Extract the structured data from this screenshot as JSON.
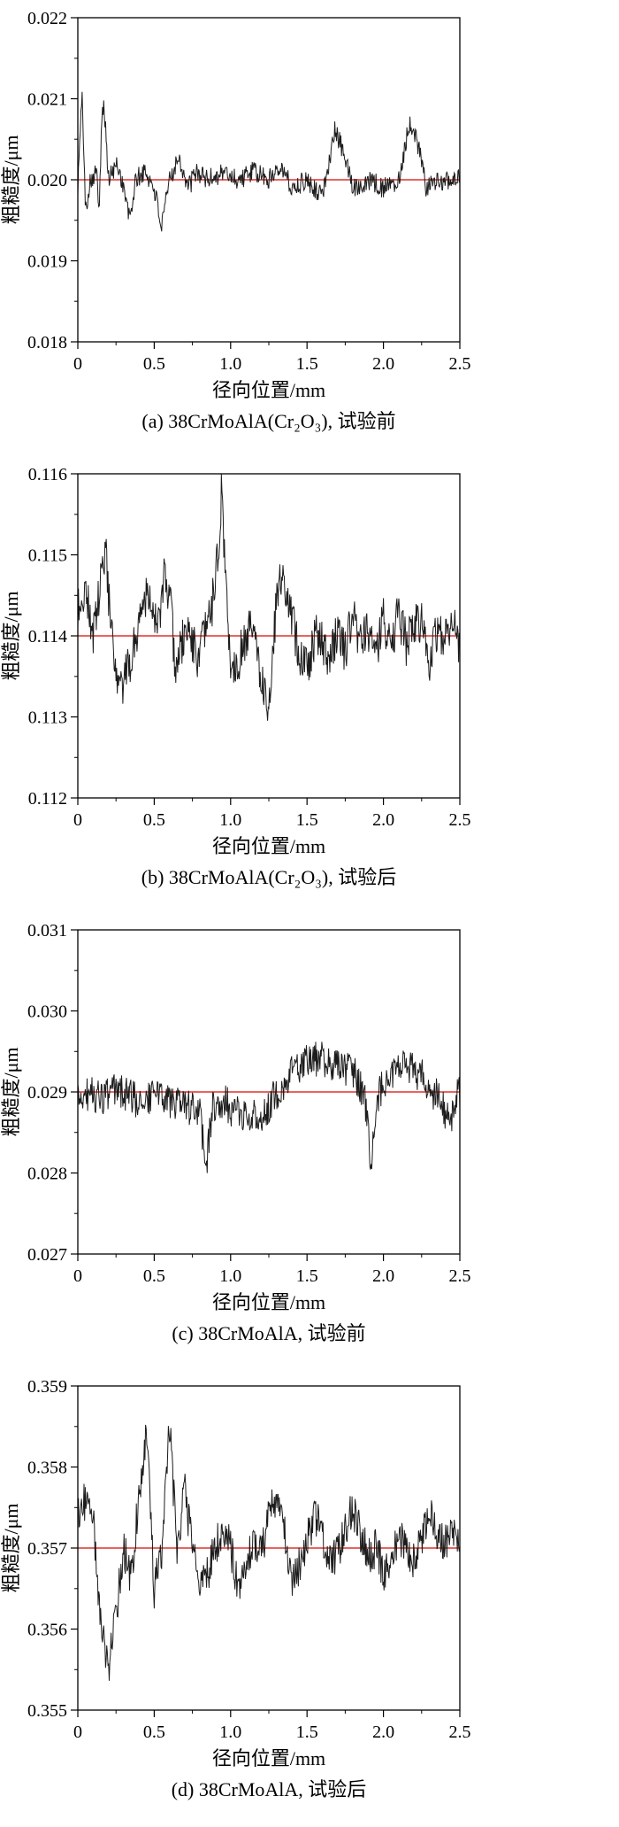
{
  "page_description": "Four stacked surface roughness profile plots with red mean lines",
  "axis_common": {
    "xlabel": "径向位置/mm",
    "ylabel": "粗糙度/μm"
  },
  "chart_data": [
    {
      "id": "a",
      "type": "line",
      "title": "(a) 38CrMoAlA(Cr₂O₃), 试验前",
      "xlabel": "径向位置/mm",
      "ylabel": "粗糙度/μm",
      "xlim": [
        0,
        2.5
      ],
      "ylim": [
        0.018,
        0.022
      ],
      "x_tick_values": [
        0,
        0.5,
        1.0,
        1.5,
        2.0,
        2.5
      ],
      "x_tick_labels": [
        "0",
        "0.5",
        "1.0",
        "1.5",
        "2.0",
        "2.5"
      ],
      "y_tick_values": [
        0.018,
        0.019,
        0.02,
        0.021,
        0.022
      ],
      "y_tick_labels": [
        "0.018",
        "0.019",
        "0.020",
        "0.021",
        "0.022"
      ],
      "grid": false,
      "legend": null,
      "mean_line": {
        "value": 0.02,
        "color": "#e0312b"
      },
      "series": [
        {
          "name": "roughness-profile",
          "color": "#1c1c1c",
          "anchors": [
            [
              0.0,
              0.0199
            ],
            [
              0.02,
              0.0208
            ],
            [
              0.03,
              0.021
            ],
            [
              0.05,
              0.0196
            ],
            [
              0.08,
              0.02
            ],
            [
              0.12,
              0.0201
            ],
            [
              0.14,
              0.0197
            ],
            [
              0.16,
              0.021
            ],
            [
              0.18,
              0.0207
            ],
            [
              0.2,
              0.02
            ],
            [
              0.26,
              0.0202
            ],
            [
              0.3,
              0.0199
            ],
            [
              0.34,
              0.0195
            ],
            [
              0.38,
              0.02
            ],
            [
              0.44,
              0.0201
            ],
            [
              0.5,
              0.0199
            ],
            [
              0.55,
              0.0194
            ],
            [
              0.6,
              0.02
            ],
            [
              0.66,
              0.0203
            ],
            [
              0.72,
              0.0199
            ],
            [
              0.78,
              0.0201
            ],
            [
              0.85,
              0.02
            ],
            [
              0.95,
              0.0201
            ],
            [
              1.05,
              0.02
            ],
            [
              1.15,
              0.0201
            ],
            [
              1.25,
              0.02
            ],
            [
              1.32,
              0.0202
            ],
            [
              1.4,
              0.0199
            ],
            [
              1.5,
              0.02
            ],
            [
              1.6,
              0.0198
            ],
            [
              1.68,
              0.0206
            ],
            [
              1.73,
              0.0204
            ],
            [
              1.8,
              0.0199
            ],
            [
              1.9,
              0.02
            ],
            [
              2.0,
              0.0199
            ],
            [
              2.1,
              0.02
            ],
            [
              2.17,
              0.0207
            ],
            [
              2.22,
              0.0205
            ],
            [
              2.28,
              0.0199
            ],
            [
              2.38,
              0.02
            ],
            [
              2.5,
              0.02
            ]
          ],
          "noise_amplitude": 0.00013,
          "seed": 101,
          "samples": 620
        }
      ]
    },
    {
      "id": "b",
      "type": "line",
      "title": "(b) 38CrMoAlA(Cr₂O₃), 试验后",
      "xlabel": "径向位置/mm",
      "ylabel": "粗糙度/μm",
      "xlim": [
        0,
        2.5
      ],
      "ylim": [
        0.112,
        0.116
      ],
      "x_tick_values": [
        0,
        0.5,
        1.0,
        1.5,
        2.0,
        2.5
      ],
      "x_tick_labels": [
        "0",
        "0.5",
        "1.0",
        "1.5",
        "2.0",
        "2.5"
      ],
      "y_tick_values": [
        0.112,
        0.113,
        0.114,
        0.115,
        0.116
      ],
      "y_tick_labels": [
        "0.112",
        "0.113",
        "0.114",
        "0.115",
        "0.116"
      ],
      "grid": false,
      "legend": null,
      "mean_line": {
        "value": 0.114,
        "color": "#e0312b"
      },
      "series": [
        {
          "name": "roughness-profile",
          "color": "#1c1c1c",
          "anchors": [
            [
              0.0,
              0.1143
            ],
            [
              0.05,
              0.1146
            ],
            [
              0.1,
              0.114
            ],
            [
              0.14,
              0.1145
            ],
            [
              0.18,
              0.1151
            ],
            [
              0.22,
              0.114
            ],
            [
              0.26,
              0.1133
            ],
            [
              0.3,
              0.1134
            ],
            [
              0.36,
              0.1138
            ],
            [
              0.42,
              0.1144
            ],
            [
              0.47,
              0.1146
            ],
            [
              0.52,
              0.114
            ],
            [
              0.56,
              0.1147
            ],
            [
              0.6,
              0.1145
            ],
            [
              0.64,
              0.1136
            ],
            [
              0.68,
              0.1139
            ],
            [
              0.73,
              0.1141
            ],
            [
              0.78,
              0.1137
            ],
            [
              0.83,
              0.114
            ],
            [
              0.88,
              0.1144
            ],
            [
              0.92,
              0.115
            ],
            [
              0.94,
              0.1158
            ],
            [
              0.96,
              0.115
            ],
            [
              1.0,
              0.1136
            ],
            [
              1.05,
              0.1137
            ],
            [
              1.1,
              0.114
            ],
            [
              1.15,
              0.1141
            ],
            [
              1.2,
              0.1135
            ],
            [
              1.25,
              0.1131
            ],
            [
              1.28,
              0.114
            ],
            [
              1.32,
              0.1147
            ],
            [
              1.36,
              0.1146
            ],
            [
              1.4,
              0.1142
            ],
            [
              1.45,
              0.1138
            ],
            [
              1.5,
              0.1136
            ],
            [
              1.55,
              0.114
            ],
            [
              1.6,
              0.1139
            ],
            [
              1.65,
              0.1137
            ],
            [
              1.7,
              0.1141
            ],
            [
              1.75,
              0.1138
            ],
            [
              1.8,
              0.1143
            ],
            [
              1.85,
              0.1139
            ],
            [
              1.9,
              0.1141
            ],
            [
              1.95,
              0.1138
            ],
            [
              2.0,
              0.1142
            ],
            [
              2.05,
              0.1139
            ],
            [
              2.1,
              0.1143
            ],
            [
              2.15,
              0.1139
            ],
            [
              2.2,
              0.1141
            ],
            [
              2.25,
              0.1142
            ],
            [
              2.3,
              0.1137
            ],
            [
              2.35,
              0.1141
            ],
            [
              2.4,
              0.114
            ],
            [
              2.45,
              0.1142
            ],
            [
              2.5,
              0.1139
            ]
          ],
          "noise_amplitude": 0.00028,
          "seed": 202,
          "samples": 620
        }
      ]
    },
    {
      "id": "c",
      "type": "line",
      "title": "(c) 38CrMoAlA, 试验前",
      "xlabel": "径向位置/mm",
      "ylabel": "粗糙度/μm",
      "xlim": [
        0,
        2.5
      ],
      "ylim": [
        0.027,
        0.031
      ],
      "x_tick_values": [
        0,
        0.5,
        1.0,
        1.5,
        2.0,
        2.5
      ],
      "x_tick_labels": [
        "0",
        "0.5",
        "1.0",
        "1.5",
        "2.0",
        "2.5"
      ],
      "y_tick_values": [
        0.027,
        0.028,
        0.029,
        0.03,
        0.031
      ],
      "y_tick_labels": [
        "0.027",
        "0.028",
        "0.029",
        "0.030",
        "0.031"
      ],
      "grid": false,
      "legend": null,
      "mean_line": {
        "value": 0.029,
        "color": "#e0312b"
      },
      "series": [
        {
          "name": "roughness-profile",
          "color": "#1c1c1c",
          "anchors": [
            [
              0.0,
              0.0289
            ],
            [
              0.08,
              0.029
            ],
            [
              0.15,
              0.0289
            ],
            [
              0.22,
              0.029
            ],
            [
              0.3,
              0.029
            ],
            [
              0.38,
              0.0289
            ],
            [
              0.45,
              0.0289
            ],
            [
              0.52,
              0.029
            ],
            [
              0.6,
              0.0289
            ],
            [
              0.68,
              0.0288
            ],
            [
              0.75,
              0.0288
            ],
            [
              0.8,
              0.0287
            ],
            [
              0.84,
              0.0281
            ],
            [
              0.88,
              0.0288
            ],
            [
              0.95,
              0.0289
            ],
            [
              1.0,
              0.0288
            ],
            [
              1.08,
              0.0287
            ],
            [
              1.15,
              0.0287
            ],
            [
              1.22,
              0.0287
            ],
            [
              1.3,
              0.029
            ],
            [
              1.38,
              0.0292
            ],
            [
              1.45,
              0.0293
            ],
            [
              1.52,
              0.0294
            ],
            [
              1.6,
              0.0294
            ],
            [
              1.68,
              0.0293
            ],
            [
              1.75,
              0.0293
            ],
            [
              1.82,
              0.0292
            ],
            [
              1.88,
              0.0289
            ],
            [
              1.92,
              0.0281
            ],
            [
              1.96,
              0.0289
            ],
            [
              2.02,
              0.0292
            ],
            [
              2.1,
              0.0293
            ],
            [
              2.18,
              0.0293
            ],
            [
              2.25,
              0.0292
            ],
            [
              2.32,
              0.029
            ],
            [
              2.38,
              0.0289
            ],
            [
              2.43,
              0.0286
            ],
            [
              2.47,
              0.0289
            ],
            [
              2.5,
              0.029
            ]
          ],
          "noise_amplitude": 0.00022,
          "seed": 303,
          "samples": 620
        }
      ]
    },
    {
      "id": "d",
      "type": "line",
      "title": "(d) 38CrMoAlA, 试验后",
      "xlabel": "径向位置/mm",
      "ylabel": "粗糙度/μm",
      "xlim": [
        0,
        2.5
      ],
      "ylim": [
        0.355,
        0.359
      ],
      "x_tick_values": [
        0,
        0.5,
        1.0,
        1.5,
        2.0,
        2.5
      ],
      "x_tick_labels": [
        "0",
        "0.5",
        "1.0",
        "1.5",
        "2.0",
        "2.5"
      ],
      "y_tick_values": [
        0.355,
        0.356,
        0.357,
        0.358,
        0.359
      ],
      "y_tick_labels": [
        "0.355",
        "0.356",
        "0.357",
        "0.358",
        "0.359"
      ],
      "grid": false,
      "legend": null,
      "mean_line": {
        "value": 0.357,
        "color": "#e0312b"
      },
      "series": [
        {
          "name": "roughness-profile",
          "color": "#1c1c1c",
          "anchors": [
            [
              0.0,
              0.3574
            ],
            [
              0.05,
              0.3576
            ],
            [
              0.1,
              0.3574
            ],
            [
              0.15,
              0.356
            ],
            [
              0.2,
              0.3555
            ],
            [
              0.25,
              0.3562
            ],
            [
              0.3,
              0.357
            ],
            [
              0.35,
              0.3566
            ],
            [
              0.4,
              0.3577
            ],
            [
              0.45,
              0.3584
            ],
            [
              0.5,
              0.3565
            ],
            [
              0.55,
              0.357
            ],
            [
              0.6,
              0.3585
            ],
            [
              0.65,
              0.357
            ],
            [
              0.7,
              0.3577
            ],
            [
              0.75,
              0.357
            ],
            [
              0.8,
              0.3565
            ],
            [
              0.85,
              0.3567
            ],
            [
              0.9,
              0.357
            ],
            [
              0.95,
              0.3572
            ],
            [
              1.0,
              0.357
            ],
            [
              1.05,
              0.3565
            ],
            [
              1.1,
              0.3568
            ],
            [
              1.15,
              0.3571
            ],
            [
              1.2,
              0.3569
            ],
            [
              1.25,
              0.3574
            ],
            [
              1.3,
              0.3576
            ],
            [
              1.35,
              0.3572
            ],
            [
              1.4,
              0.3566
            ],
            [
              1.45,
              0.3568
            ],
            [
              1.5,
              0.3571
            ],
            [
              1.55,
              0.3574
            ],
            [
              1.6,
              0.3572
            ],
            [
              1.65,
              0.3568
            ],
            [
              1.7,
              0.3569
            ],
            [
              1.75,
              0.3572
            ],
            [
              1.8,
              0.3575
            ],
            [
              1.85,
              0.3572
            ],
            [
              1.9,
              0.3569
            ],
            [
              1.95,
              0.357
            ],
            [
              2.0,
              0.3567
            ],
            [
              2.05,
              0.3569
            ],
            [
              2.1,
              0.3571
            ],
            [
              2.15,
              0.357
            ],
            [
              2.2,
              0.3568
            ],
            [
              2.25,
              0.3571
            ],
            [
              2.3,
              0.3574
            ],
            [
              2.35,
              0.3572
            ],
            [
              2.4,
              0.357
            ],
            [
              2.45,
              0.3573
            ],
            [
              2.5,
              0.3571
            ]
          ],
          "noise_amplitude": 0.00025,
          "seed": 404,
          "samples": 620
        }
      ]
    }
  ]
}
